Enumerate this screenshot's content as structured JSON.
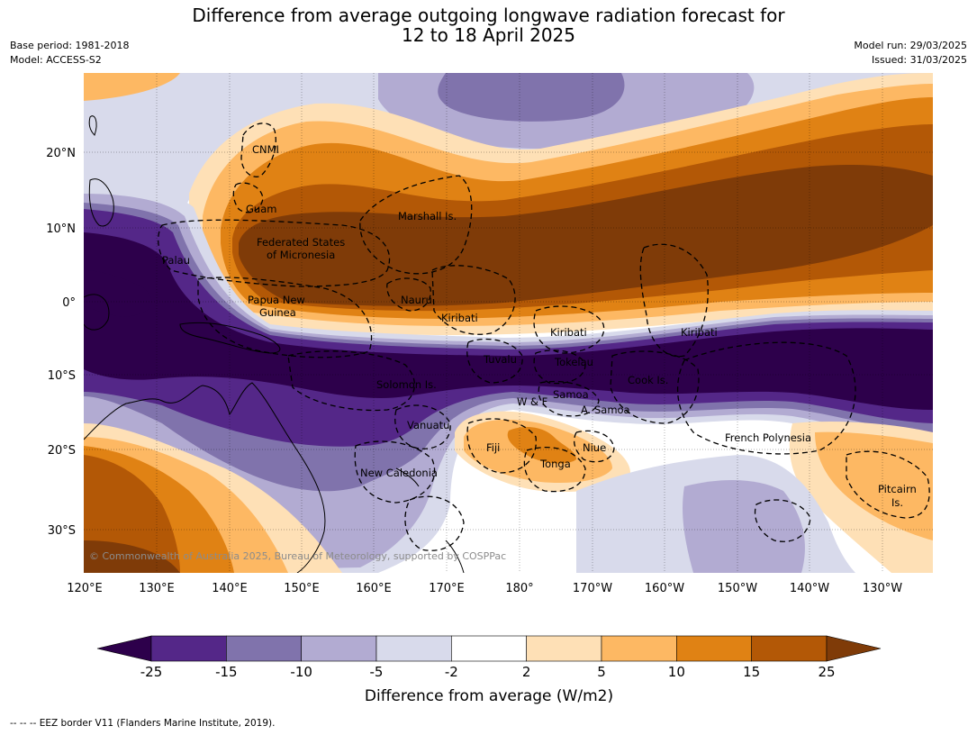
{
  "title_line1": "Difference from average outgoing longwave radiation forecast for",
  "title_line2": "12 to 18 April 2025",
  "base_period": "Base period: 1981-2018",
  "model": "Model: ACCESS-S2",
  "model_run": "Model run: 29/03/2025",
  "issued": "Issued: 31/03/2025",
  "lat_labels": [
    "20°N",
    "10°N",
    "0°",
    "10°S",
    "20°S",
    "30°S"
  ],
  "lon_labels": [
    "120°E",
    "130°E",
    "140°E",
    "150°E",
    "160°E",
    "170°E",
    "180°",
    "170°W",
    "160°W",
    "150°W",
    "140°W",
    "130°W"
  ],
  "places": [
    {
      "name": "CNMI"
    },
    {
      "name": "Guam"
    },
    {
      "name": "Marshall Is."
    },
    {
      "name": "Federated States"
    },
    {
      "name": "of Micronesia"
    },
    {
      "name": "Palau"
    },
    {
      "name": "Papua New"
    },
    {
      "name": "Guinea"
    },
    {
      "name": "Nauru"
    },
    {
      "name": "Kiribati"
    },
    {
      "name": "Kiribati"
    },
    {
      "name": "Kiribati"
    },
    {
      "name": "Tuvalu"
    },
    {
      "name": "Tokelau"
    },
    {
      "name": "Cook Is."
    },
    {
      "name": "Solomon Is."
    },
    {
      "name": "W & F"
    },
    {
      "name": "Samoa"
    },
    {
      "name": "A. Samoa"
    },
    {
      "name": "Vanuatu"
    },
    {
      "name": "Fiji"
    },
    {
      "name": "Niue"
    },
    {
      "name": "Tonga"
    },
    {
      "name": "French Polynesia"
    },
    {
      "name": "New Caledonia"
    },
    {
      "name": "Pitcairn"
    },
    {
      "name": "Is."
    }
  ],
  "copyright": "© Commonwealth of Australia 2025, Bureau of Meteorology, supported by COSPPac",
  "colorbar": {
    "title": "Difference from average (W/m2)",
    "ticks": [
      "-25",
      "-15",
      "-10",
      "-5",
      "-2",
      "2",
      "5",
      "10",
      "15",
      "25"
    ],
    "colors": [
      "#2d004b",
      "#542788",
      "#8073ac",
      "#b2abd2",
      "#d8daeb",
      "#ffffff",
      "#fee0b6",
      "#fdb863",
      "#e08214",
      "#b35806",
      "#7f3b08"
    ]
  },
  "footer": "--  --  -- EEZ border V11 (Flanders Marine Institute, 2019)."
}
